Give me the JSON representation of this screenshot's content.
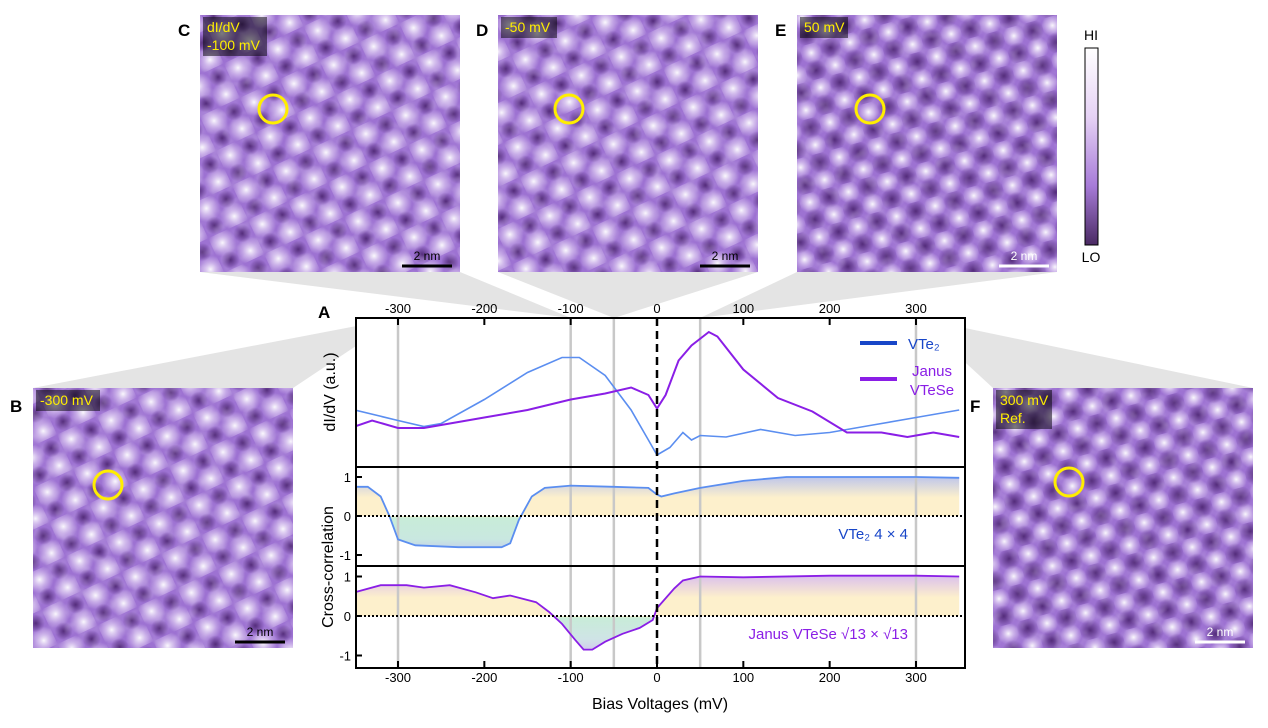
{
  "panels": {
    "A": {
      "letter": "A"
    },
    "B": {
      "letter": "B",
      "label_lines": [
        "-300 mV"
      ],
      "scale": "2 nm"
    },
    "C": {
      "letter": "C",
      "label_lines": [
        "dI/dV",
        "-100 mV"
      ],
      "scale": "2 nm"
    },
    "D": {
      "letter": "D",
      "label_lines": [
        "-50 mV"
      ],
      "scale": "2 nm"
    },
    "E": {
      "letter": "E",
      "label_lines": [
        "50 mV"
      ],
      "scale": "2 nm"
    },
    "F": {
      "letter": "F",
      "label_lines": [
        "300 mV",
        "Ref."
      ],
      "scale": "2 nm"
    }
  },
  "colorbar": {
    "high": "HI",
    "low": "LO",
    "colors": [
      "#ffffff",
      "#e6d2f5",
      "#a77bd8",
      "#4a2a63"
    ]
  },
  "colors": {
    "vte2": "#5b8ef0",
    "vte2_legend": "#1846c8",
    "janus": "#8a1ee6",
    "highlight": "#ffee00",
    "map_base": "#9d72d2"
  },
  "chart_data": [
    {
      "type": "line",
      "panel": "top",
      "ylabel": "dI/dV (a.u.)",
      "xlabel": "Bias Voltages (mV)",
      "xlim": [
        -350,
        357
      ],
      "xticks": [
        -300,
        -200,
        -100,
        0,
        100,
        200,
        300
      ],
      "marked_voltages": [
        -300,
        -100,
        -50,
        50,
        300
      ],
      "zero_line": 0,
      "legend": {
        "placement": "top-right",
        "entries": [
          {
            "label": "VTe₂"
          },
          {
            "label_lines": [
              "Janus",
              "VTeSe"
            ]
          }
        ]
      },
      "series": [
        {
          "name": "VTe₂",
          "x": [
            -350,
            -300,
            -270,
            -250,
            -200,
            -150,
            -110,
            -90,
            -60,
            -30,
            -10,
            0,
            15,
            30,
            40,
            50,
            80,
            120,
            160,
            200,
            250,
            300,
            350
          ],
          "y": [
            0.38,
            0.31,
            0.27,
            0.29,
            0.45,
            0.63,
            0.73,
            0.73,
            0.61,
            0.38,
            0.18,
            0.08,
            0.13,
            0.23,
            0.18,
            0.21,
            0.2,
            0.25,
            0.21,
            0.23,
            0.28,
            0.33,
            0.38
          ]
        },
        {
          "name": "Janus VTeSe",
          "x": [
            -350,
            -330,
            -300,
            -270,
            -240,
            -200,
            -150,
            -100,
            -60,
            -30,
            -10,
            0,
            10,
            25,
            40,
            60,
            70,
            100,
            140,
            180,
            220,
            260,
            290,
            320,
            350
          ],
          "y": [
            0.27,
            0.31,
            0.26,
            0.26,
            0.29,
            0.33,
            0.38,
            0.45,
            0.49,
            0.53,
            0.48,
            0.39,
            0.48,
            0.71,
            0.81,
            0.9,
            0.87,
            0.65,
            0.46,
            0.37,
            0.23,
            0.23,
            0.2,
            0.23,
            0.2
          ]
        }
      ]
    },
    {
      "type": "area",
      "panel": "middle",
      "ylabel": "Cross-correlation",
      "ylim": [
        -1.3,
        1.25
      ],
      "yticks": [
        1,
        0,
        -1
      ],
      "annotation": "VTe₂ 4 × 4",
      "series": [
        {
          "name": "VTe₂ 4 × 4",
          "x": [
            -350,
            -335,
            -320,
            -310,
            -300,
            -280,
            -230,
            -180,
            -170,
            -160,
            -145,
            -130,
            -100,
            -50,
            -10,
            0,
            5,
            20,
            50,
            100,
            150,
            200,
            300,
            350
          ],
          "y": [
            0.75,
            0.75,
            0.5,
            0,
            -0.6,
            -0.75,
            -0.8,
            -0.8,
            -0.7,
            -0.1,
            0.5,
            0.72,
            0.78,
            0.75,
            0.72,
            0.55,
            0.5,
            0.58,
            0.72,
            0.9,
            1.0,
            1.0,
            1.0,
            0.98
          ]
        }
      ]
    },
    {
      "type": "area",
      "panel": "bottom",
      "ylabel": "Cross-correlation",
      "ylim": [
        -1.3,
        1.25
      ],
      "yticks": [
        1,
        0,
        -1
      ],
      "annotation": "Janus VTeSe √13 × √13",
      "series": [
        {
          "name": "Janus VTeSe √13 × √13",
          "x": [
            -350,
            -320,
            -290,
            -270,
            -240,
            -210,
            -190,
            -170,
            -140,
            -125,
            -110,
            -95,
            -85,
            -75,
            -60,
            -40,
            -20,
            -5,
            0,
            20,
            30,
            50,
            100,
            200,
            300,
            350
          ],
          "y": [
            0.6,
            0.78,
            0.78,
            0.72,
            0.78,
            0.6,
            0.45,
            0.52,
            0.35,
            0.1,
            -0.2,
            -0.6,
            -0.85,
            -0.85,
            -0.65,
            -0.45,
            -0.3,
            -0.1,
            0.2,
            0.7,
            0.9,
            1.0,
            0.98,
            1.02,
            1.02,
            1.0
          ]
        }
      ]
    }
  ]
}
